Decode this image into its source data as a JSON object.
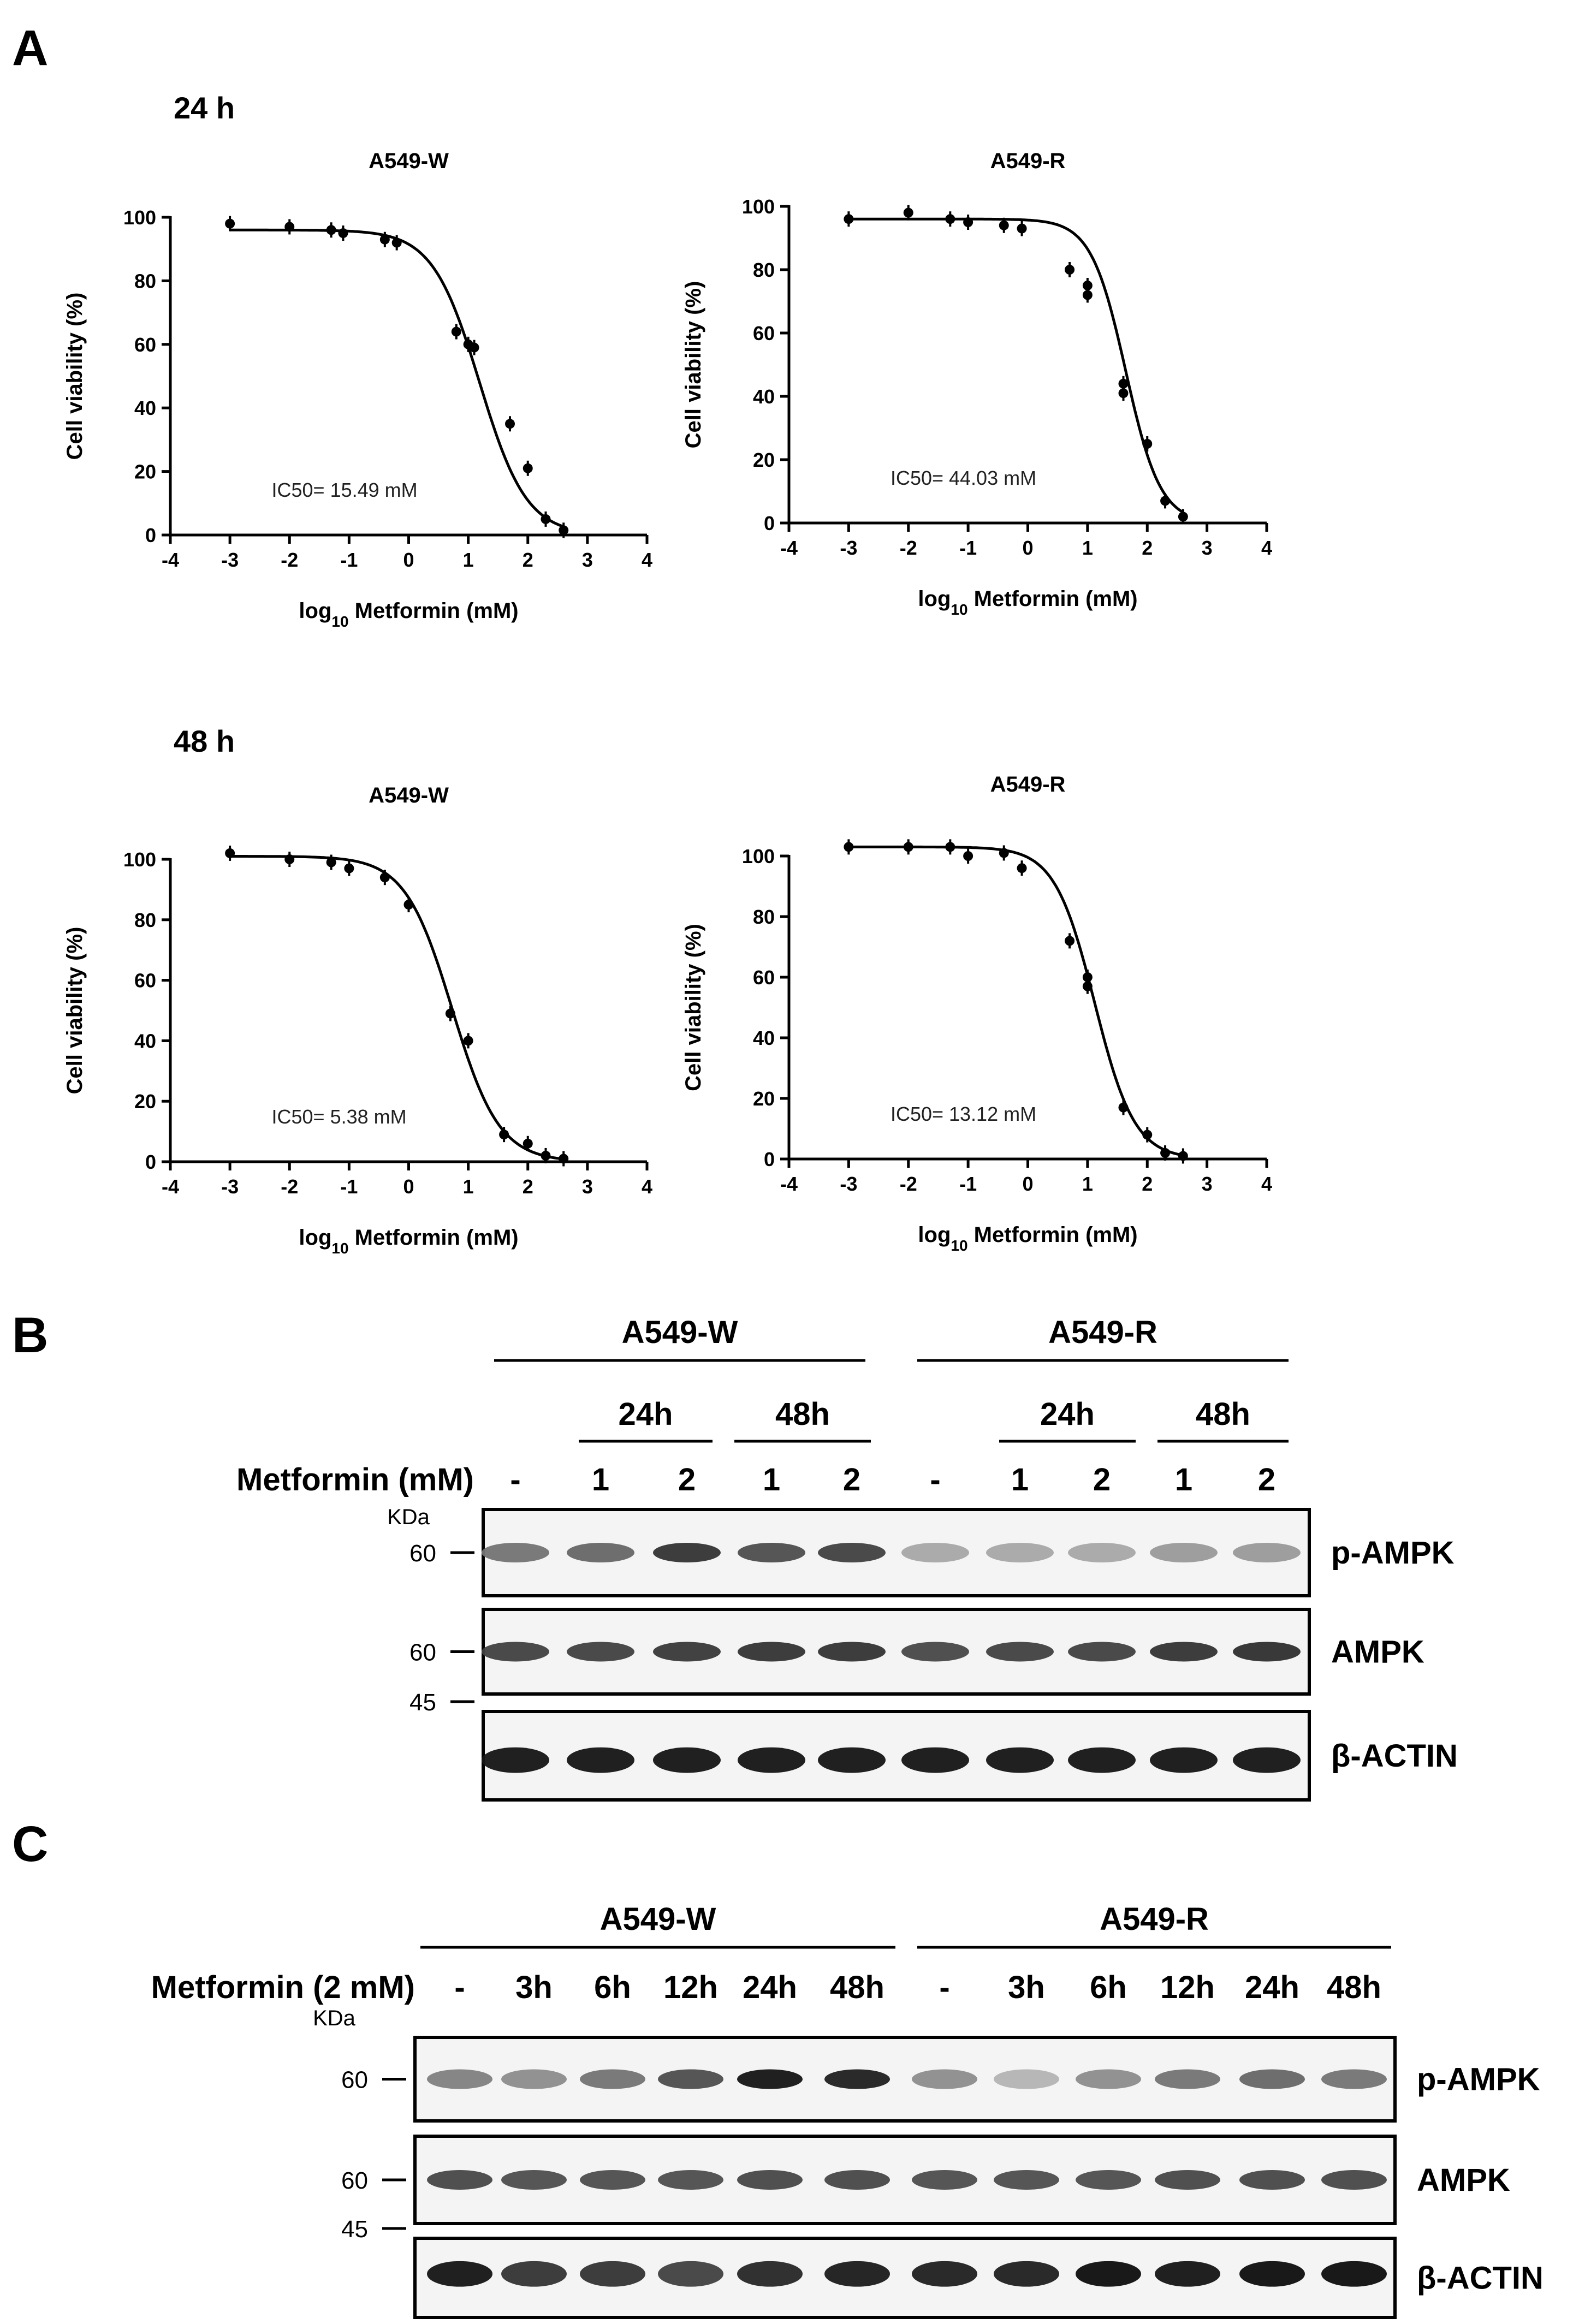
{
  "panels": {
    "a": "A",
    "b": "B",
    "c": "C"
  },
  "timepoints": [
    "24 h",
    "48 h"
  ],
  "chart_data": [
    {
      "type": "scatter",
      "title": "A549-W",
      "timepoint": "24 h",
      "xlabel": "log10 Metformin (mM)",
      "ylabel": "Cell viability (%)",
      "xlim": [
        -4,
        4
      ],
      "ylim": [
        0,
        100
      ],
      "xticks": [
        -4,
        -3,
        -2,
        -1,
        0,
        1,
        2,
        3,
        4
      ],
      "yticks": [
        0,
        20,
        40,
        60,
        80,
        100
      ],
      "annotation": "IC50= 15.49 mM",
      "ic50_log": 1.19,
      "top": 96,
      "bottom": 0,
      "hill": 1.1,
      "points": [
        [
          -3,
          98
        ],
        [
          -2,
          97
        ],
        [
          -1.3,
          96
        ],
        [
          -1.1,
          95
        ],
        [
          -0.4,
          93
        ],
        [
          -0.2,
          92
        ],
        [
          0.8,
          64
        ],
        [
          1.0,
          60
        ],
        [
          1.1,
          59
        ],
        [
          1.7,
          35
        ],
        [
          2.0,
          21
        ],
        [
          2.3,
          5
        ],
        [
          2.6,
          1.5
        ]
      ]
    },
    {
      "type": "scatter",
      "title": "A549-R",
      "timepoint": "24 h",
      "xlabel": "log10 Metformin (mM)",
      "ylabel": "Cell viability (%)",
      "xlim": [
        -4,
        4
      ],
      "ylim": [
        0,
        100
      ],
      "xticks": [
        -4,
        -3,
        -2,
        -1,
        0,
        1,
        2,
        3,
        4
      ],
      "yticks": [
        0,
        20,
        40,
        60,
        80,
        100
      ],
      "annotation": "IC50= 44.03 mM",
      "ic50_log": 1.64,
      "top": 96,
      "bottom": 0,
      "hill": 1.5,
      "points": [
        [
          -3,
          96
        ],
        [
          -2,
          98
        ],
        [
          -1.3,
          96
        ],
        [
          -1.0,
          95
        ],
        [
          -0.4,
          94
        ],
        [
          -0.1,
          93
        ],
        [
          0.7,
          80
        ],
        [
          1.0,
          75
        ],
        [
          1.0,
          72
        ],
        [
          1.6,
          44
        ],
        [
          1.6,
          41
        ],
        [
          2.0,
          25
        ],
        [
          2.3,
          7
        ],
        [
          2.6,
          2
        ]
      ]
    },
    {
      "type": "scatter",
      "title": "A549-W",
      "timepoint": "48 h",
      "xlabel": "log10 Metformin (mM)",
      "ylabel": "Cell viability (%)",
      "xlim": [
        -4,
        4
      ],
      "ylim": [
        0,
        100
      ],
      "xticks": [
        -4,
        -3,
        -2,
        -1,
        0,
        1,
        2,
        3,
        4
      ],
      "yticks": [
        0,
        20,
        40,
        60,
        80,
        100
      ],
      "annotation": "IC50= 5.38 mM",
      "ic50_log": 0.73,
      "top": 101,
      "bottom": 0,
      "hill": 1.1,
      "points": [
        [
          -3,
          102
        ],
        [
          -2,
          100
        ],
        [
          -1.3,
          99
        ],
        [
          -1.0,
          97
        ],
        [
          -0.4,
          94
        ],
        [
          0,
          85
        ],
        [
          0.7,
          49
        ],
        [
          1.0,
          40
        ],
        [
          1.6,
          9
        ],
        [
          2.0,
          6
        ],
        [
          2.3,
          2
        ],
        [
          2.6,
          1
        ]
      ]
    },
    {
      "type": "scatter",
      "title": "A549-R",
      "timepoint": "48 h",
      "xlabel": "log10 Metformin (mM)",
      "ylabel": "Cell viability (%)",
      "xlim": [
        -4,
        4
      ],
      "ylim": [
        0,
        100
      ],
      "xticks": [
        -4,
        -3,
        -2,
        -1,
        0,
        1,
        2,
        3,
        4
      ],
      "yticks": [
        0,
        20,
        40,
        60,
        80,
        100
      ],
      "annotation": "IC50= 13.12 mM",
      "ic50_log": 1.12,
      "top": 103,
      "bottom": 0,
      "hill": 1.3,
      "points": [
        [
          -3,
          103
        ],
        [
          -2,
          103
        ],
        [
          -1.3,
          103
        ],
        [
          -1.0,
          100
        ],
        [
          -0.4,
          101
        ],
        [
          -0.1,
          96
        ],
        [
          0.7,
          72
        ],
        [
          1.0,
          60
        ],
        [
          1.0,
          57
        ],
        [
          1.6,
          17
        ],
        [
          2.0,
          8
        ],
        [
          2.3,
          2
        ],
        [
          2.6,
          1
        ]
      ]
    }
  ],
  "blot_b": {
    "groups": [
      "A549-W",
      "A549-R"
    ],
    "times": [
      "24h",
      "48h",
      "24h",
      "48h"
    ],
    "treatment_label": "Metformin (mM)",
    "doses": [
      "-",
      "1",
      "2",
      "1",
      "2",
      "-",
      "1",
      "2",
      "1",
      "2"
    ],
    "kda_label": "KDa",
    "bands": [
      {
        "name": "p-AMPK",
        "marker": "60",
        "intensity": [
          0.55,
          0.6,
          0.8,
          0.7,
          0.75,
          0.35,
          0.35,
          0.35,
          0.4,
          0.4
        ]
      },
      {
        "name": "AMPK",
        "marker": "60",
        "intensity": [
          0.75,
          0.75,
          0.78,
          0.8,
          0.8,
          0.72,
          0.75,
          0.75,
          0.8,
          0.82
        ]
      },
      {
        "name": "β-ACTIN",
        "marker": "45",
        "intensity": [
          0.92,
          0.92,
          0.92,
          0.92,
          0.92,
          0.92,
          0.92,
          0.92,
          0.92,
          0.92
        ]
      }
    ]
  },
  "blot_c": {
    "groups": [
      "A549-W",
      "A549-R"
    ],
    "treatment_label": "Metformin (2 mM)",
    "lanes": [
      "-",
      "3h",
      "6h",
      "12h",
      "24h",
      "48h",
      "-",
      "3h",
      "6h",
      "12h",
      "24h",
      "48h"
    ],
    "kda_label": "KDa",
    "bands": [
      {
        "name": "p-AMPK",
        "marker": "60",
        "intensity": [
          0.5,
          0.45,
          0.55,
          0.7,
          0.92,
          0.88,
          0.45,
          0.3,
          0.45,
          0.55,
          0.6,
          0.55
        ]
      },
      {
        "name": "AMPK",
        "marker": "60",
        "intensity": [
          0.72,
          0.7,
          0.7,
          0.7,
          0.72,
          0.72,
          0.7,
          0.7,
          0.7,
          0.72,
          0.72,
          0.72
        ]
      },
      {
        "name": "β-ACTIN",
        "marker": "45",
        "intensity": [
          0.92,
          0.8,
          0.8,
          0.75,
          0.85,
          0.9,
          0.88,
          0.88,
          0.95,
          0.92,
          0.95,
          0.95
        ]
      }
    ]
  }
}
